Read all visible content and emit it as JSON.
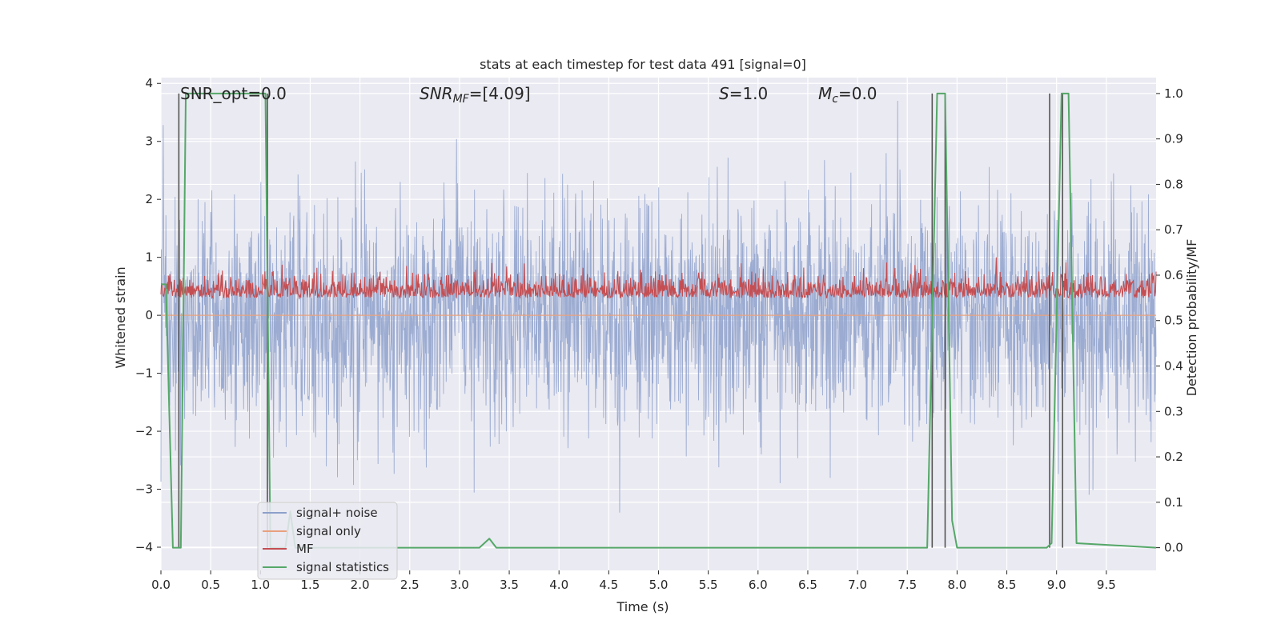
{
  "chart_data": {
    "type": "line",
    "title": "stats at each timestep for test data 491 [signal=0]",
    "xlabel": "Time (s)",
    "ylabel_left": "Whitened strain",
    "ylabel_right": "Detection probability/MF",
    "xlim": [
      0.0,
      10.0
    ],
    "ylim_left": [
      -4.4,
      4.1
    ],
    "ylim_right": [
      -0.05,
      1.035
    ],
    "x_ticks": [
      "0.0",
      "0.5",
      "1.0",
      "1.5",
      "2.0",
      "2.5",
      "3.0",
      "3.5",
      "4.0",
      "4.5",
      "5.0",
      "5.5",
      "6.0",
      "6.5",
      "7.0",
      "7.5",
      "8.0",
      "8.5",
      "9.0",
      "9.5"
    ],
    "y_ticks_left": [
      "4",
      "3",
      "2",
      "1",
      "0",
      "−1",
      "−2",
      "−3",
      "−4"
    ],
    "y_ticks_right": [
      "1.0",
      "0.9",
      "0.8",
      "0.7",
      "0.6",
      "0.5",
      "0.4",
      "0.3",
      "0.2",
      "0.1",
      "0.0"
    ],
    "grid": true,
    "legend_position": "lower-left",
    "colors": {
      "background": "#eaeaf2",
      "grid": "#ffffff",
      "noise": "#8da0cb",
      "signal": "#e8a17e",
      "mf": "#c44e52",
      "stats": "#55a868",
      "markers": "#555555"
    },
    "annotations": {
      "snr_opt": "SNR_opt=0.0",
      "snr_mf_base": "SNR",
      "snr_mf_sub": "MF",
      "snr_mf_value": "=[4.09]",
      "s_symbol": "S",
      "s_value": "=1.0",
      "mc_symbol": "M",
      "mc_sub": "c",
      "mc_value": "=0.0"
    },
    "series": [
      {
        "name": "signal+ noise",
        "axis": "left",
        "style": "noise",
        "amplitude_std": 1.0,
        "range": [
          -4.3,
          3.7
        ]
      },
      {
        "name": "signal only",
        "axis": "left",
        "style": "flat",
        "value": 0.0
      },
      {
        "name": "MF",
        "axis": "left",
        "style": "band",
        "range": [
          0.0,
          1.0
        ]
      },
      {
        "name": "signal statistics",
        "axis": "right",
        "x": [
          0.0,
          0.05,
          0.12,
          0.2,
          0.25,
          1.05,
          1.1,
          1.13,
          1.25,
          1.3,
          1.35,
          1.5,
          3.2,
          3.3,
          3.37,
          7.7,
          7.8,
          7.88,
          7.95,
          8.0,
          8.9,
          8.95,
          9.05,
          9.12,
          9.2,
          10.0
        ],
        "y": [
          0.58,
          0.58,
          0.0,
          0.0,
          1.0,
          1.0,
          0.0,
          0.0,
          0.0,
          0.08,
          0.0,
          0.0,
          0.0,
          0.02,
          0.0,
          0.0,
          1.0,
          1.0,
          0.06,
          0.0,
          0.0,
          0.01,
          1.0,
          1.0,
          0.01,
          0.0
        ]
      }
    ],
    "event_markers_x": [
      0.18,
      1.07,
      7.75,
      7.88,
      8.93,
      9.06
    ],
    "legend": [
      "signal+ noise",
      "signal only",
      "MF",
      "signal statistics"
    ]
  }
}
